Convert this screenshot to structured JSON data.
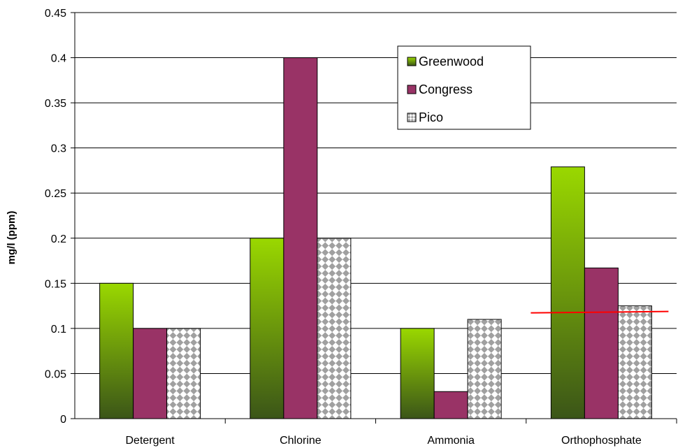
{
  "chart_data": {
    "type": "bar",
    "title": "",
    "xlabel": "",
    "ylabel": "mg/l (ppm)",
    "ylim": [
      0,
      0.45
    ],
    "ytick_step": 0.05,
    "yticks": [
      "0",
      "0.05",
      "0.1",
      "0.15",
      "0.2",
      "0.25",
      "0.3",
      "0.35",
      "0.4",
      "0.45"
    ],
    "grid": true,
    "legend_position": "top-right",
    "categories": [
      "Detergent",
      "Chlorine",
      "Ammonia",
      "Orthophosphate"
    ],
    "series": [
      {
        "name": "Greenwood",
        "values": [
          0.15,
          0.2,
          0.1,
          0.279
        ],
        "color": "#8ccc00",
        "color_dark": "#3e5a16"
      },
      {
        "name": "Congress",
        "values": [
          0.1,
          0.4,
          0.03,
          0.167
        ],
        "color": "#993366"
      },
      {
        "name": "Pico",
        "values": [
          0.1,
          0.2,
          0.11,
          0.125
        ],
        "color": "#999999",
        "pattern": "checker"
      }
    ],
    "reference_line": {
      "y": 0.118,
      "color": "#ff0000",
      "category": "Orthophosphate"
    }
  }
}
